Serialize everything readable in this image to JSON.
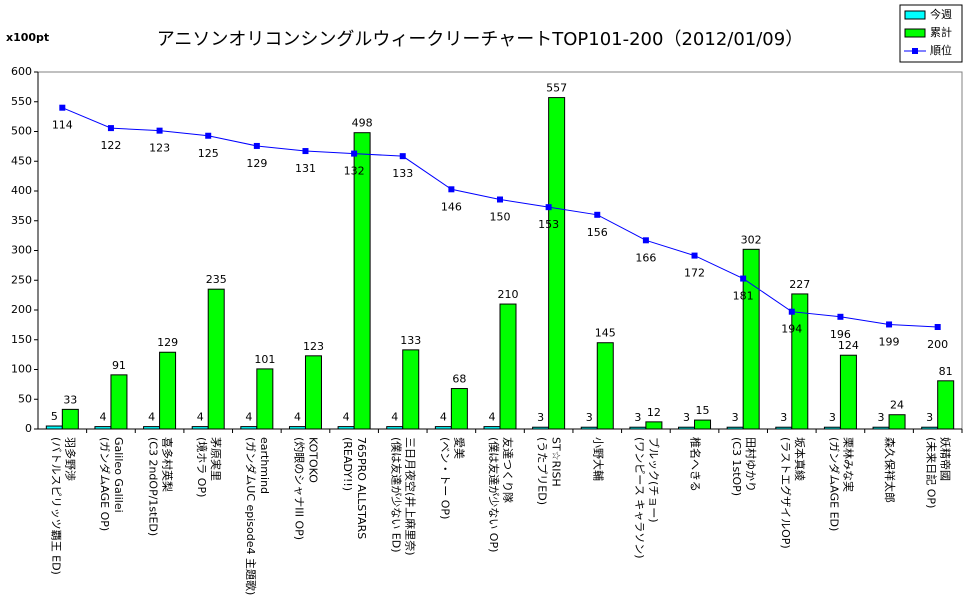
{
  "chart_data": {
    "type": "bar",
    "title": "アニソンオリコンシングルウィークリーチャートTOP101-200（2012/01/09）",
    "y_unit": "x100pt",
    "categories": [
      [
        "羽多野渉",
        "(バトルスピリッツ覇王 ED)"
      ],
      [
        "Galileo Galilei",
        "(ガンダムAGE OP)"
      ],
      [
        "喜多村英梨",
        "(C3 2ndOP/1stED)"
      ],
      [
        "茅原実里",
        "(境ホラ OP)"
      ],
      [
        "earthmind",
        "(ガンダムUC episode4 主題歌)"
      ],
      [
        "KOTOKO",
        "(灼眼のシャナIII OP)"
      ],
      [
        "765PRO ALLSTARS",
        "(READY!!)"
      ],
      [
        "三日月夜空(井上麻里奈)",
        "(僕は友達が少ない ED)"
      ],
      [
        "愛美",
        "(ベン・トー OP)"
      ],
      [
        "友達つくり隊",
        "(僕は友達が少ない OP)"
      ],
      [
        "ST☆RISH",
        "(うたプリED)"
      ],
      [
        "小野大輔"
      ],
      [
        "ブルック(チョー)",
        "(ワンピース キャラソン)"
      ],
      [
        "椎名へきる"
      ],
      [
        "田村ゆかり",
        "(C3 1stOP)"
      ],
      [
        "坂本真綾",
        "(ラストエグザイルOP)"
      ],
      [
        "栗林みな実",
        "(ガンダムAGE ED)"
      ],
      [
        "森久保祥太郎"
      ],
      [
        "妖精帝國",
        "(未来日記 OP)"
      ]
    ],
    "series": [
      {
        "name": "今週",
        "color": "#00ffff",
        "type": "bar",
        "axis": "y",
        "values": [
          5,
          4,
          4,
          4,
          4,
          4,
          4,
          4,
          4,
          4,
          3,
          3,
          3,
          3,
          3,
          3,
          3,
          3,
          3
        ]
      },
      {
        "name": "累計",
        "color": "#00ff00",
        "type": "bar",
        "axis": "y",
        "values": [
          33,
          91,
          129,
          235,
          101,
          123,
          498,
          133,
          68,
          210,
          557,
          145,
          12,
          15,
          302,
          227,
          124,
          24,
          81
        ]
      },
      {
        "name": "順位",
        "color": "#0000ff",
        "type": "line",
        "axis": "y2",
        "values": [
          114,
          122,
          123,
          125,
          129,
          131,
          132,
          133,
          146,
          150,
          153,
          156,
          166,
          172,
          181,
          194,
          196,
          199,
          200
        ]
      }
    ],
    "ylim": [
      0,
      600
    ],
    "yticks": [
      0,
      50,
      100,
      150,
      200,
      250,
      300,
      350,
      400,
      450,
      500,
      550,
      600
    ],
    "y2lim": [
      240,
      100
    ],
    "grid": false,
    "legend": "top-right"
  }
}
